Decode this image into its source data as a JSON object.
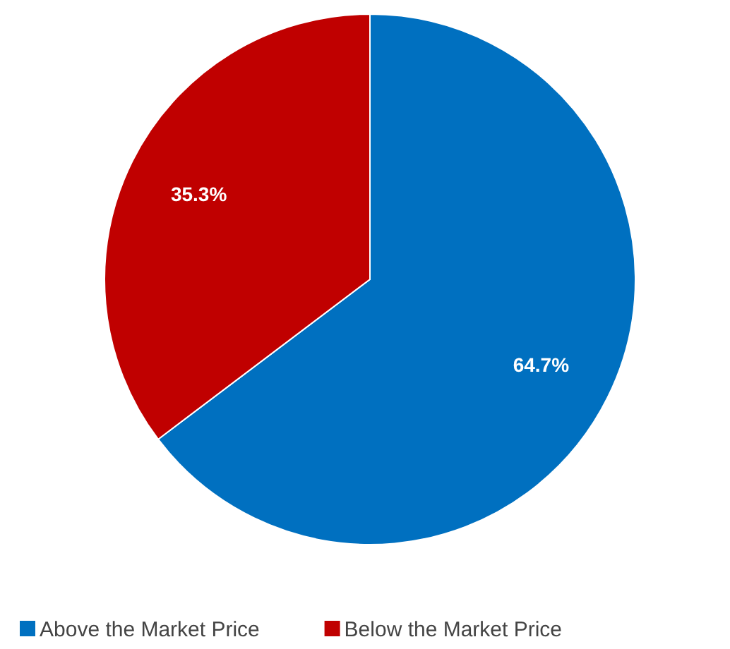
{
  "chart_data": {
    "type": "pie",
    "categories": [
      "Above the Market Price",
      "Below the Market Price"
    ],
    "values": [
      64.7,
      35.3
    ],
    "colors": [
      "#0070c0",
      "#c00000"
    ],
    "value_labels": [
      "64.7%",
      "35.3%"
    ],
    "legend": "bottom"
  }
}
